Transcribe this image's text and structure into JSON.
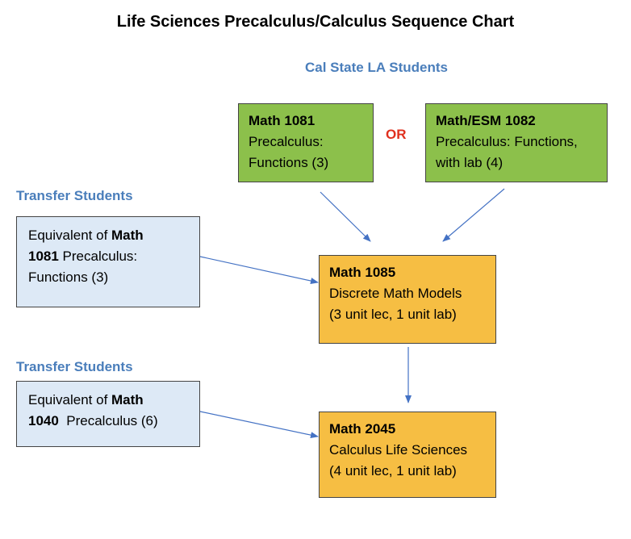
{
  "title": "Life Sciences Precalculus/Calculus Sequence Chart",
  "labels": {
    "cal_state": "Cal State LA Students",
    "transfer_1": "Transfer Students",
    "transfer_2": "Transfer Students",
    "or": "OR"
  },
  "boxes": {
    "math1081": {
      "code": "Math 1081",
      "line1": "Precalculus:",
      "line2": "Functions (3)"
    },
    "math1082": {
      "code": "Math/ESM 1082",
      "line1": "Precalculus: Functions,",
      "line2": "with lab (4)"
    },
    "transfer1081": {
      "prefix": "Equivalent of ",
      "code_a": "Math",
      "code_b": "1081",
      "rest": " Precalculus:",
      "line3": "Functions (3)"
    },
    "math1085": {
      "code": "Math 1085",
      "line1": "Discrete Math Models",
      "line2": "(3 unit lec, 1 unit lab)"
    },
    "transfer1040": {
      "prefix": "Equivalent of ",
      "code_a": "Math",
      "code_b": "1040",
      "rest": "  Precalculus (6)"
    },
    "math2045": {
      "code": "Math 2045",
      "line1": "Calculus Life Sciences",
      "line2": "(4 unit lec, 1 unit lab)"
    }
  },
  "colors": {
    "green": "#8cc04b",
    "orange": "#f6be43",
    "light_blue": "#dde9f6",
    "label_blue": "#4a7ebb",
    "or_red": "#e0301e",
    "arrow": "#4472c4"
  }
}
